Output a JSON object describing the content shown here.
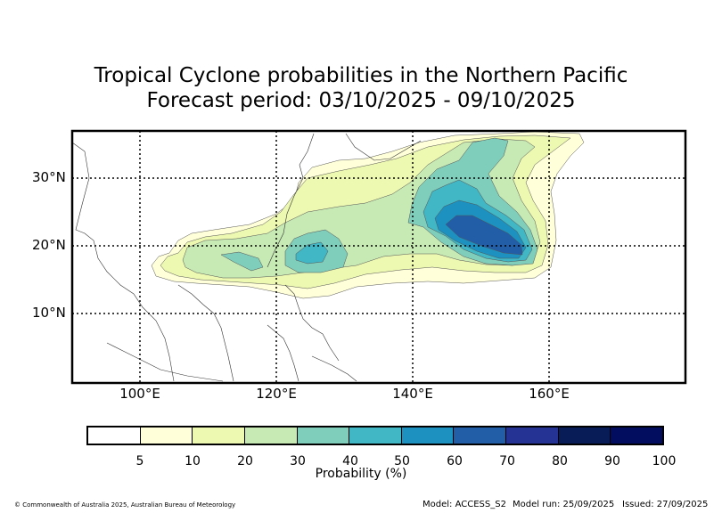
{
  "title_line1": "Tropical Cyclone probabilities in the Northern Pacific",
  "title_line2": "Forecast period: 03/10/2025 - 09/10/2025",
  "lat_labels": [
    "30°N",
    "20°N",
    "10°N"
  ],
  "lon_labels": [
    "100°E",
    "120°E",
    "140°E",
    "160°E"
  ],
  "colorbar": {
    "label": "Probability (%)",
    "ticks": [
      "5",
      "10",
      "20",
      "30",
      "40",
      "50",
      "60",
      "70",
      "80",
      "90",
      "100"
    ],
    "colors": [
      "#ffffff",
      "#ffffd9",
      "#edf8b1",
      "#c7e9b4",
      "#7fcdbb",
      "#41b6c4",
      "#1d91c0",
      "#225ea8",
      "#253494",
      "#081d58",
      "#030d60"
    ]
  },
  "footer": {
    "copyright": "© Commonwealth of Australia 2025, Australian Bureau of Meteorology",
    "model": "Model: ACCESS_S2",
    "model_run": "Model run: 25/09/2025",
    "issued": "Issued: 27/09/2025"
  }
}
